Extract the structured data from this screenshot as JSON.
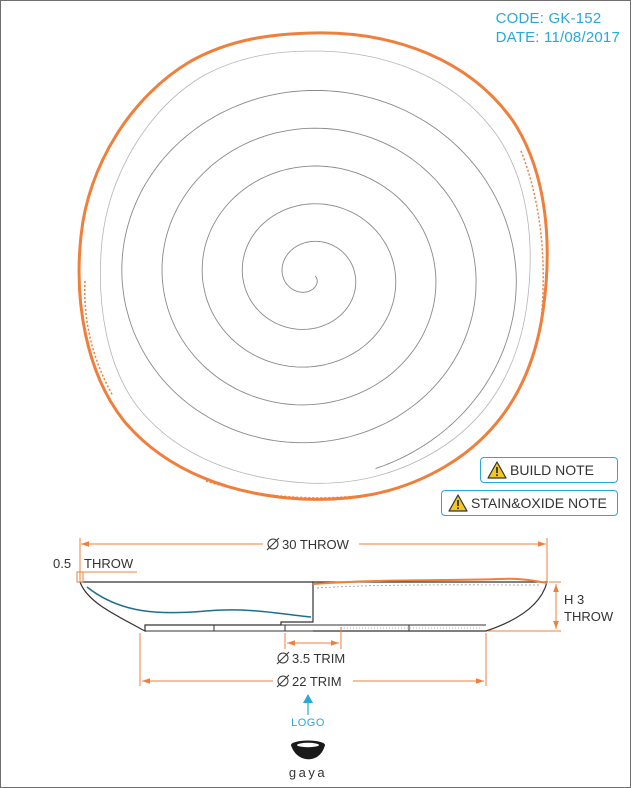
{
  "header": {
    "code": "CODE: GK-152",
    "date": "DATE: 11/08/2017"
  },
  "notes": {
    "build": "BUILD NOTE",
    "stain": "STAIN&OXIDE NOTE"
  },
  "dimensions": {
    "diameter_throw": "30 THROW",
    "wall_label": "0.5",
    "wall_throw": "THROW",
    "height_label": "H 3",
    "height_throw": "THROW",
    "trim_small": "3.5 TRIM",
    "trim_large": "22 TRIM"
  },
  "logo_label": "LOGO",
  "brand": "gaya",
  "colors": {
    "accent": "#f07f3c",
    "info": "#29a9d8",
    "line": "#333333",
    "warning": "#f3c623"
  },
  "icons": [
    "warning-icon",
    "diameter-icon",
    "bowl-logo-icon",
    "arrow-up-icon"
  ]
}
